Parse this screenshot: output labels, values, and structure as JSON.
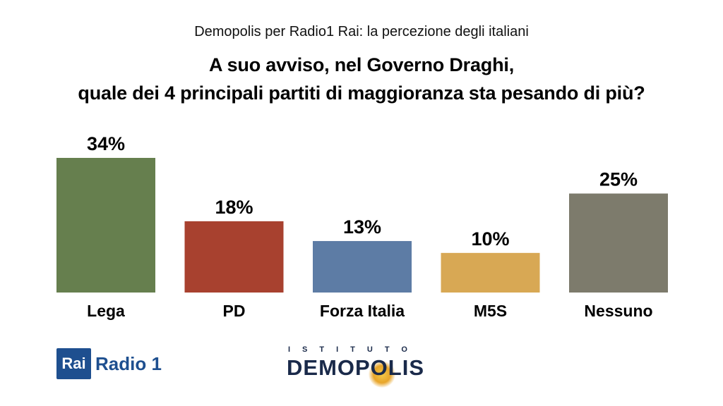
{
  "header": {
    "subtitle": "Demopolis per Radio1 Rai: la percezione degli italiani",
    "title_line1": "A suo avviso, nel Governo Draghi,",
    "title_line2": "quale dei 4 principali partiti di maggioranza sta pesando di più?"
  },
  "chart_data": {
    "type": "bar",
    "categories": [
      "Lega",
      "PD",
      "Forza Italia",
      "M5S",
      "Nessuno"
    ],
    "values": [
      34,
      18,
      13,
      10,
      25
    ],
    "value_labels": [
      "34%",
      "18%",
      "13%",
      "10%",
      "25%"
    ],
    "colors": [
      "#667f4e",
      "#a8412f",
      "#5d7ca5",
      "#d8a854",
      "#7d7b6c"
    ],
    "title": "A suo avviso, nel Governo Draghi, quale dei 4 principali partiti di maggioranza sta pesando di più?",
    "xlabel": "",
    "ylabel": "",
    "ylim": [
      0,
      34
    ],
    "grid": false,
    "legend": "none"
  },
  "logos": {
    "rai_box": "Rai",
    "radio": "Radio 1",
    "istituto": "ISTITUTO",
    "demopolis": "DEMOPOLIS"
  }
}
